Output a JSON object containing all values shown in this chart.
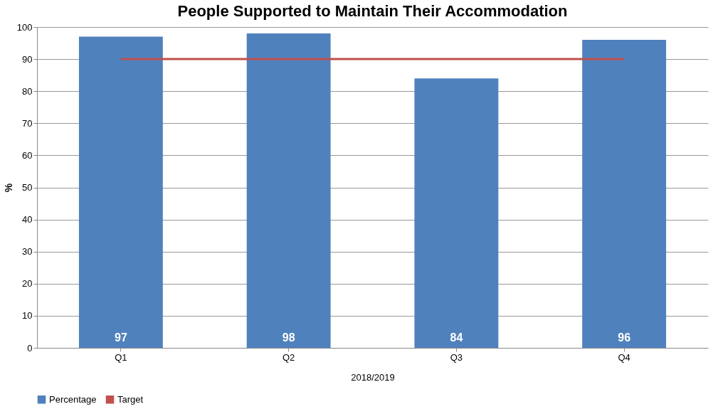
{
  "chart_data": {
    "type": "bar",
    "title": "People Supported to Maintain Their Accommodation",
    "xlabel": "2018/2019",
    "ylabel": "%",
    "categories": [
      "Q1",
      "Q2",
      "Q3",
      "Q4"
    ],
    "series": [
      {
        "name": "Percentage",
        "color": "#4f81bd",
        "values": [
          97,
          98,
          84,
          96
        ],
        "value_labels": [
          "97",
          "98",
          "84",
          "96"
        ]
      },
      {
        "name": "Target",
        "type": "line",
        "color": "#c0504d",
        "values": [
          90,
          90,
          90,
          90
        ]
      }
    ],
    "ylim": [
      0,
      100
    ],
    "yticks": [
      0,
      10,
      20,
      30,
      40,
      50,
      60,
      70,
      80,
      90,
      100
    ],
    "grid": "y",
    "legend": "bottom"
  }
}
